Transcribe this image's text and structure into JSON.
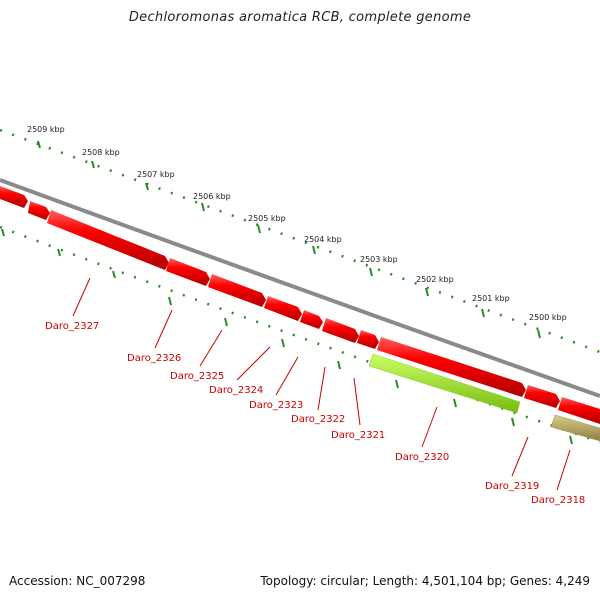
{
  "title": "Dechloromonas aromatica RCB, complete genome",
  "footer": {
    "accession": "Accession: NC_007298",
    "info": "Topology: circular; Length: 4,501,104 bp; Genes: 4,249"
  },
  "ticks": [
    "2509 kbp",
    "2508 kbp",
    "2507 kbp",
    "2506 kbp",
    "2505 kbp",
    "2504 kbp",
    "2503 kbp",
    "2502 kbp",
    "2501 kbp",
    "2500 kbp"
  ],
  "genes": [
    "Daro_2327",
    "Daro_2326",
    "Daro_2325",
    "Daro_2324",
    "Daro_2323",
    "Daro_2322",
    "Daro_2321",
    "Daro_2320",
    "Daro_2319",
    "Daro_2318"
  ],
  "colors": {
    "backbone": "#8a8a8a",
    "forward_gene": "#ee0000",
    "highlight_gene": "#99dd22",
    "tan_gene": "#b0a060",
    "tick": "#2a8a2a",
    "label": "#cc0000"
  }
}
